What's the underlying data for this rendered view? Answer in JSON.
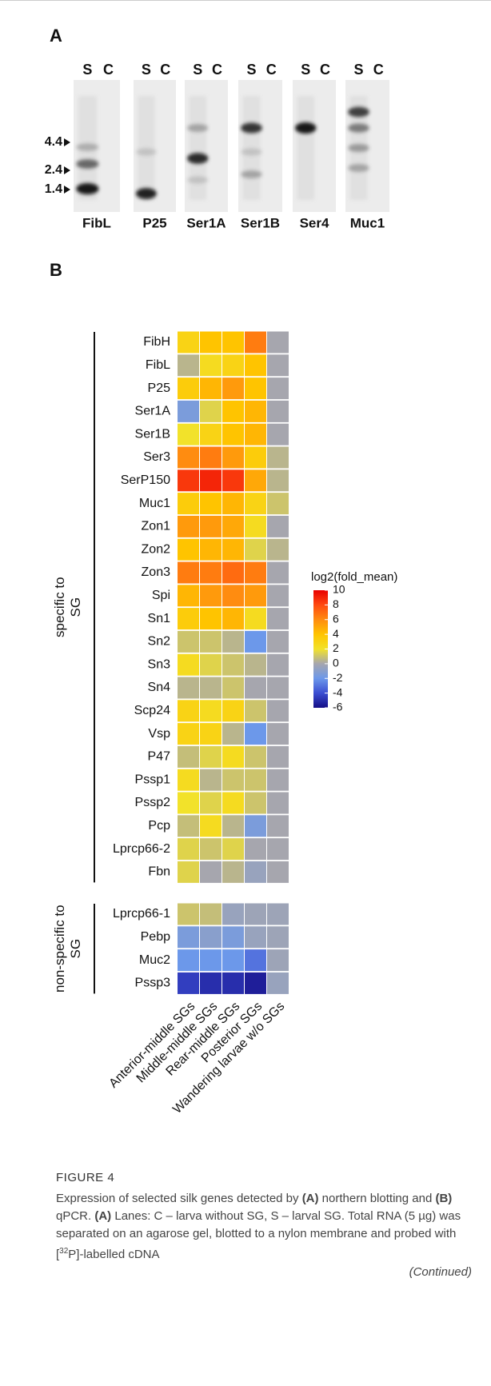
{
  "panel_a": {
    "label": "A",
    "size_markers": [
      4.4,
      2.4,
      1.4
    ],
    "blots": [
      {
        "name": "FibL",
        "lanes": [
          "S",
          "C"
        ]
      },
      {
        "name": "P25",
        "lanes": [
          "S",
          "C"
        ]
      },
      {
        "name": "Ser1A",
        "lanes": [
          "S",
          "C"
        ]
      },
      {
        "name": "Ser1B",
        "lanes": [
          "S",
          "C"
        ]
      },
      {
        "name": "Ser4",
        "lanes": [
          "S",
          "C"
        ]
      },
      {
        "name": "Muc1",
        "lanes": [
          "S",
          "C"
        ]
      }
    ]
  },
  "chart_data": {
    "type": "heatmap",
    "label": "B",
    "categories": [
      "Anterior-middle SGs",
      "Middle-middle SGs",
      "Rear-middle SGs",
      "Posterior SGs",
      "Wandering larvae w/o SGs"
    ],
    "groups": [
      {
        "label": "specific to SG",
        "rows": [
          "FibH",
          "FibL",
          "P25",
          "Ser1A",
          "Ser1B",
          "Ser3",
          "SerP150",
          "Muc1",
          "Zon1",
          "Zon2",
          "Zon3",
          "Spi",
          "Sn1",
          "Sn2",
          "Sn3",
          "Sn4",
          "Scp24",
          "Vsp",
          "P47",
          "Pssp1",
          "Pssp2",
          "Pcp",
          "Lprcp66-2",
          "Fbn"
        ],
        "values": [
          [
            3,
            4,
            4,
            6.5,
            0
          ],
          [
            0.5,
            2.5,
            3,
            4,
            0
          ],
          [
            3.5,
            4.5,
            5.5,
            4,
            0
          ],
          [
            -1.5,
            1.5,
            4,
            4.5,
            0
          ],
          [
            2,
            3,
            4,
            4.5,
            0
          ],
          [
            6,
            6.5,
            5.5,
            3.5,
            0.5
          ],
          [
            8.5,
            9,
            8.5,
            5,
            0.5
          ],
          [
            3.5,
            4,
            4.5,
            3,
            1
          ],
          [
            5.5,
            5.5,
            5,
            2.5,
            0
          ],
          [
            4,
            4.5,
            4.5,
            1.5,
            0.5
          ],
          [
            6.5,
            6.5,
            7,
            6.5,
            0
          ],
          [
            4.5,
            5.5,
            6,
            5.5,
            0
          ],
          [
            3.5,
            4,
            4.5,
            2.5,
            0
          ],
          [
            1,
            1,
            0.5,
            -2,
            0
          ],
          [
            2.5,
            1.5,
            1,
            0.5,
            0
          ],
          [
            0.5,
            0.5,
            1,
            0,
            0
          ],
          [
            3,
            2.5,
            3,
            1,
            0
          ],
          [
            3,
            3,
            0.5,
            -2,
            0
          ],
          [
            0.8,
            1.5,
            2.5,
            1,
            0
          ],
          [
            2.5,
            0.5,
            1,
            1,
            0
          ],
          [
            2,
            1.5,
            2.5,
            1,
            0
          ],
          [
            0.8,
            2.5,
            0.5,
            -1.5,
            0
          ],
          [
            1.5,
            1,
            1.5,
            0,
            0
          ],
          [
            1.5,
            0,
            0.5,
            -0.5,
            0
          ]
        ]
      },
      {
        "label": "non-specific to SG",
        "rows": [
          "Lprcp66-1",
          "Pebp",
          "Muc2",
          "Pssp3"
        ],
        "values": [
          [
            1,
            0.8,
            -0.5,
            -0.3,
            -0.3
          ],
          [
            -1.5,
            -1,
            -1.5,
            -0.5,
            -0.3
          ],
          [
            -2,
            -2,
            -2,
            -3,
            -0.3
          ],
          [
            -4.5,
            -5,
            -5,
            -5.5,
            -0.5
          ]
        ]
      }
    ],
    "colorbar": {
      "title": "log2(fold_mean)",
      "ticks": [
        10,
        8,
        6,
        4,
        2,
        0,
        -2,
        -4,
        -6
      ],
      "colors": [
        "#e80000",
        "#ff4a10",
        "#ff8c10",
        "#ffc400",
        "#f2e22a",
        "#a6a6ae",
        "#6c98ea",
        "#3b4ed2",
        "#150e86"
      ]
    },
    "clim": [
      -6,
      10
    ]
  },
  "caption": {
    "figure_label": "FIGURE 4",
    "segments": [
      "Expression of selected silk genes detected by ",
      "(A)",
      " northern blotting and ",
      "(B)",
      " qPCR. ",
      "(A)",
      " Lanes: C – larva without SG, S – larval SG. Total RNA (5 µg) was separated on an agarose gel, blotted to a nylon membrane and probed with [",
      "32",
      "P]-labelled cDNA"
    ],
    "continued": "(Continued)"
  }
}
